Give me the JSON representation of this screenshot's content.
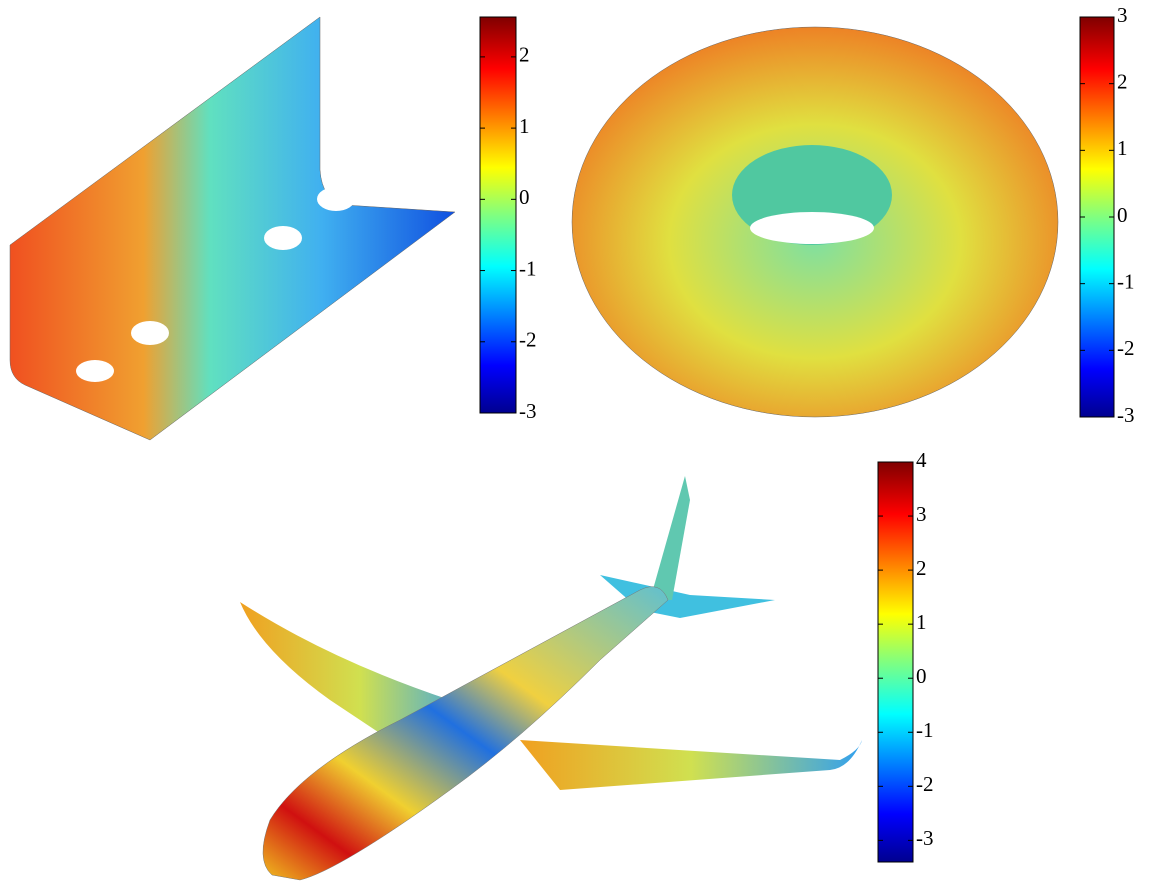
{
  "chart_data": [
    {
      "type": "colorbar",
      "colormap": "jet",
      "ylim": [
        -3,
        2.56
      ],
      "yticks": [
        -3,
        -2,
        -1,
        0,
        1,
        2
      ]
    },
    {
      "type": "colorbar",
      "colormap": "jet",
      "ylim": [
        -3,
        3
      ],
      "yticks": [
        -3,
        -2,
        -1,
        0,
        1,
        2,
        3
      ]
    },
    {
      "type": "colorbar",
      "colormap": "jet",
      "ylim": [
        -3.4,
        4
      ],
      "yticks": [
        -3,
        -2,
        -1,
        0,
        1,
        2,
        3,
        4
      ]
    }
  ]
}
